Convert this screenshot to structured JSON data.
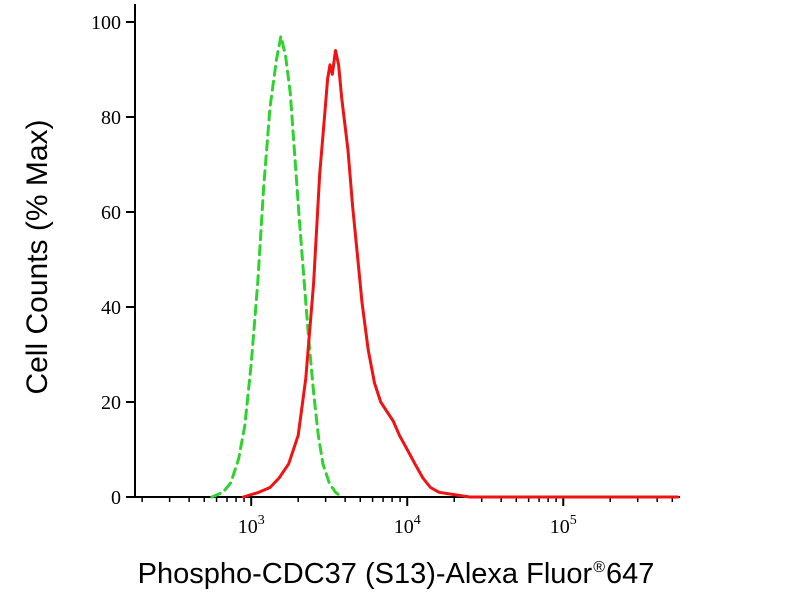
{
  "chart_data": {
    "type": "line",
    "title": "",
    "ylabel": "Cell Counts (% Max)",
    "xlabel_main": "Phospho-CDC37 (S13)-Alexa Fluor",
    "xlabel_sup": "®",
    "xlabel_suffix": "647",
    "xscale": "log",
    "xlim": [
      180,
      560000
    ],
    "ylim": [
      0,
      100
    ],
    "yticks": [
      0,
      20,
      40,
      60,
      80,
      100
    ],
    "xtick_exponents": [
      3,
      4,
      5
    ],
    "grid": false,
    "legend": "none",
    "axis_color": "#000000",
    "series": [
      {
        "name": "green-dashed-histogram",
        "color": "#2fd32f",
        "dash": [
          9,
          6
        ],
        "points": [
          [
            560,
            0
          ],
          [
            660,
            1
          ],
          [
            740,
            3
          ],
          [
            830,
            8
          ],
          [
            910,
            15
          ],
          [
            1000,
            28
          ],
          [
            1100,
            45
          ],
          [
            1200,
            65
          ],
          [
            1320,
            82
          ],
          [
            1450,
            92
          ],
          [
            1550,
            97
          ],
          [
            1660,
            93
          ],
          [
            1780,
            85
          ],
          [
            1900,
            72
          ],
          [
            2040,
            58
          ],
          [
            2190,
            45
          ],
          [
            2340,
            33
          ],
          [
            2510,
            22
          ],
          [
            2690,
            13
          ],
          [
            2880,
            7
          ],
          [
            3160,
            3
          ],
          [
            3470,
            1
          ],
          [
            3800,
            0
          ]
        ]
      },
      {
        "name": "red-solid-histogram",
        "color": "#f01313",
        "dash": null,
        "points": [
          [
            890,
            0
          ],
          [
            1120,
            1
          ],
          [
            1320,
            2
          ],
          [
            1510,
            4
          ],
          [
            1740,
            7
          ],
          [
            2000,
            13
          ],
          [
            2240,
            25
          ],
          [
            2510,
            45
          ],
          [
            2750,
            68
          ],
          [
            2950,
            80
          ],
          [
            3090,
            88
          ],
          [
            3200,
            91
          ],
          [
            3310,
            89
          ],
          [
            3470,
            94
          ],
          [
            3630,
            91
          ],
          [
            3800,
            84
          ],
          [
            4170,
            73
          ],
          [
            4470,
            61
          ],
          [
            4790,
            51
          ],
          [
            5130,
            41
          ],
          [
            5620,
            31
          ],
          [
            6170,
            24
          ],
          [
            6760,
            20
          ],
          [
            7410,
            18
          ],
          [
            8130,
            16
          ],
          [
            8910,
            13
          ],
          [
            10000,
            10
          ],
          [
            11200,
            7
          ],
          [
            12600,
            4
          ],
          [
            14100,
            2
          ],
          [
            16000,
            1
          ],
          [
            20000,
            0.5
          ],
          [
            25100,
            0
          ],
          [
            540000,
            0
          ]
        ]
      }
    ]
  }
}
